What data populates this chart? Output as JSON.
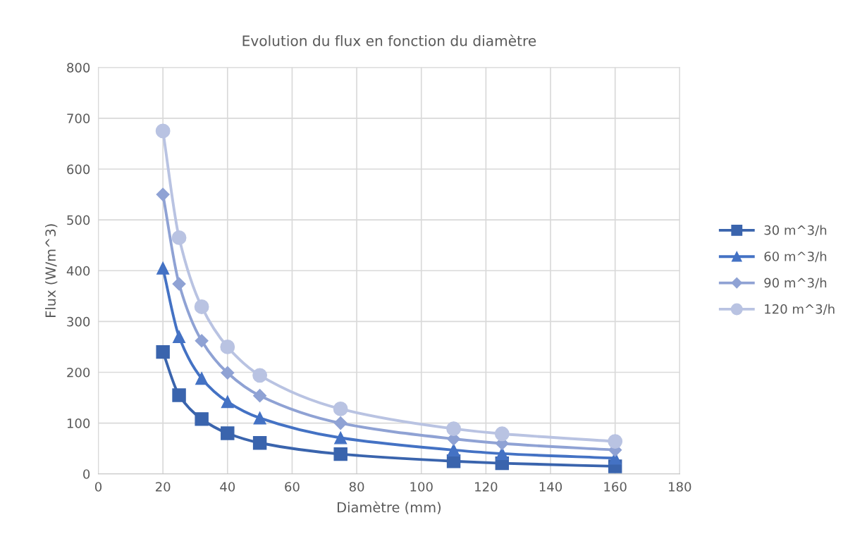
{
  "chart_data": {
    "type": "line",
    "title": "Evolution du flux en fonction du diamètre",
    "xlabel": "Diamètre (mm)",
    "ylabel": "Flux (W/m^3)",
    "x": [
      20,
      25,
      32,
      40,
      50,
      75,
      110,
      125,
      160
    ],
    "series": [
      {
        "name": "30 m^3/h",
        "color": "#3a64ad",
        "marker": "square",
        "values": [
          240,
          155,
          108,
          80,
          61,
          39,
          25,
          21,
          15
        ]
      },
      {
        "name": "60 m^3/h",
        "color": "#4472c4",
        "marker": "triangle",
        "values": [
          405,
          270,
          188,
          142,
          110,
          71,
          47,
          40,
          31
        ]
      },
      {
        "name": "90 m^3/h",
        "color": "#8fa2d4",
        "marker": "diamond",
        "values": [
          550,
          374,
          262,
          199,
          154,
          100,
          69,
          60,
          47
        ]
      },
      {
        "name": "120 m^3/h",
        "color": "#b9c3e2",
        "marker": "circle",
        "values": [
          675,
          465,
          329,
          250,
          194,
          128,
          89,
          79,
          64
        ]
      }
    ],
    "xlim": [
      0,
      180
    ],
    "xticks": [
      0,
      20,
      40,
      60,
      80,
      100,
      120,
      140,
      160,
      180
    ],
    "ylim": [
      0,
      800
    ],
    "yticks": [
      0,
      100,
      200,
      300,
      400,
      500,
      600,
      700,
      800
    ],
    "grid": true,
    "legend": "right",
    "line_style": "solid"
  }
}
